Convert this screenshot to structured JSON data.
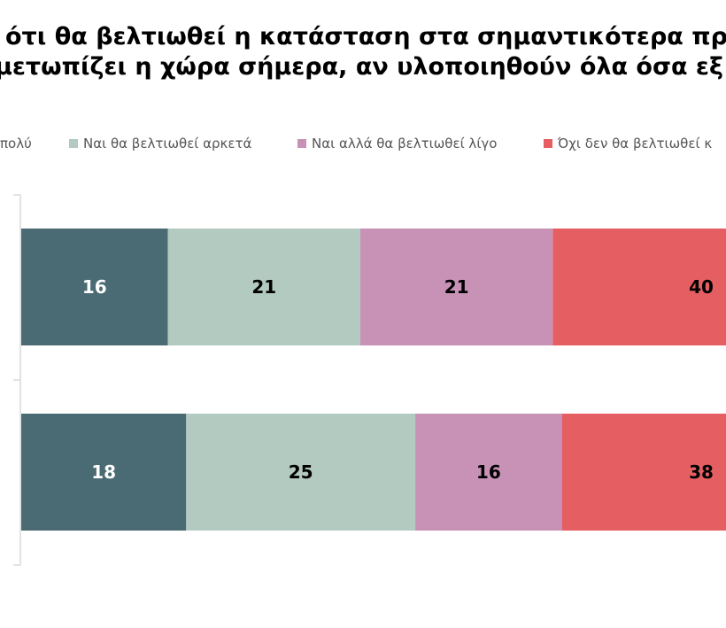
{
  "title": {
    "line1": "ότι θα βελτιωθεί η κατάσταση στα σημαντικότερα προ",
    "line2": "μετωπίζει η χώρα σήμερα, αν υλοποιηθούν όλα όσα εξ"
  },
  "colors": {
    "very_much": "#4b6b74",
    "fairly": "#b3cac0",
    "little": "#c792b6",
    "no": "#e55f62",
    "axis": "#d9d9d9"
  },
  "chart_data": {
    "type": "bar",
    "orientation": "horizontal",
    "stacked": true,
    "title": "",
    "xlabel": "",
    "ylabel": "",
    "categories": [
      "",
      ""
    ],
    "series": [
      {
        "name": "πολύ",
        "values": [
          16,
          18
        ]
      },
      {
        "name": "Ναι θα βελτιωθεί αρκετά",
        "values": [
          21,
          25
        ]
      },
      {
        "name": "Ναι αλλά θα βελτιωθεί λίγο",
        "values": [
          21,
          16
        ]
      },
      {
        "name": "Όχι δεν θα βελτιωθεί κ",
        "values": [
          40,
          38
        ]
      }
    ],
    "xlim": [
      0,
      100
    ],
    "legend": "top",
    "grid": false
  }
}
